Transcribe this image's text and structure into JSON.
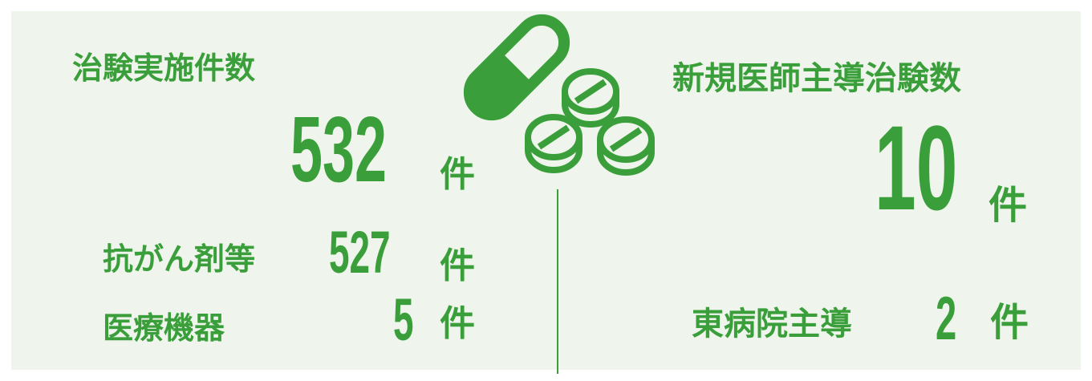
{
  "colors": {
    "accent": "#3a9f3a",
    "panel_bg": "#eff5ec",
    "page_bg": "#ffffff"
  },
  "icon": "pills-capsule-icon",
  "left": {
    "title": "治験実施件数",
    "total": {
      "value": "532",
      "unit": "件"
    },
    "rows": [
      {
        "label": "抗がん剤等",
        "value": "527",
        "unit": "件"
      },
      {
        "label": "医療機器",
        "value": "5",
        "unit": "件"
      }
    ]
  },
  "right": {
    "title": "新規医師主導治験数",
    "total": {
      "value": "10",
      "unit": "件"
    },
    "rows": [
      {
        "label": "東病院主導",
        "value": "2",
        "unit": "件"
      }
    ]
  }
}
